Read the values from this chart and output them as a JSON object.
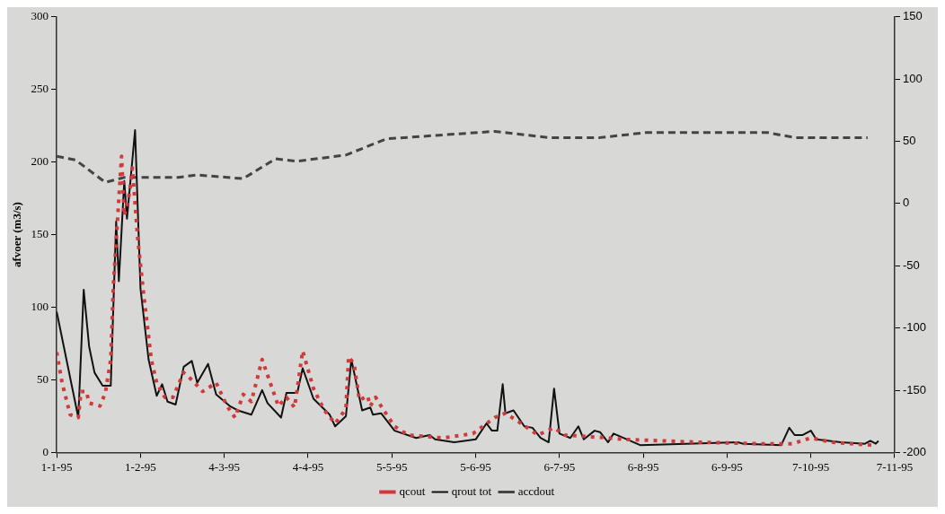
{
  "chart_data": {
    "type": "line",
    "ylabel": "afvoer (m3/s)",
    "xlim": [
      "1995-01-01",
      "1995-11-07"
    ],
    "xticks": [
      {
        "value": "1995-01-01",
        "label": "1-1-95"
      },
      {
        "value": "1995-02-01",
        "label": "1-2-95"
      },
      {
        "value": "1995-03-04",
        "label": "4-3-95"
      },
      {
        "value": "1995-04-04",
        "label": "4-4-95"
      },
      {
        "value": "1995-05-05",
        "label": "5-5-95"
      },
      {
        "value": "1995-06-05",
        "label": "5-6-95"
      },
      {
        "value": "1995-07-06",
        "label": "6-7-95"
      },
      {
        "value": "1995-08-06",
        "label": "6-8-95"
      },
      {
        "value": "1995-09-06",
        "label": "6-9-95"
      },
      {
        "value": "1995-10-07",
        "label": "7-10-95"
      },
      {
        "value": "1995-11-07",
        "label": "7-11-95"
      }
    ],
    "ylim": [
      0,
      300
    ],
    "yticks": [
      0,
      50,
      100,
      150,
      200,
      250,
      300
    ],
    "y2lim": [
      -200,
      150
    ],
    "y2ticks": [
      -200,
      -150,
      -100,
      -50,
      0,
      50,
      100,
      150
    ],
    "grid": false,
    "legend": "bottom",
    "marker": "none",
    "series": [
      {
        "name": "qcout",
        "color": "#d03a3a",
        "line_style": "dotted",
        "x": [
          "1995-01-01",
          "1995-01-03",
          "1995-01-06",
          "1995-01-09",
          "1995-01-10",
          "1995-01-12",
          "1995-01-13",
          "1995-01-17",
          "1995-01-19",
          "1995-01-21",
          "1995-01-22",
          "1995-01-25",
          "1995-01-26",
          "1995-01-28",
          "1995-01-29",
          "1995-01-31",
          "1995-02-02",
          "1995-02-05",
          "1995-02-07",
          "1995-02-10",
          "1995-02-13",
          "1995-02-17",
          "1995-02-20",
          "1995-02-24",
          "1995-03-01",
          "1995-03-05",
          "1995-03-08",
          "1995-03-11",
          "1995-03-14",
          "1995-03-18",
          "1995-03-21",
          "1995-03-24",
          "1995-03-27",
          "1995-03-30",
          "1995-04-02",
          "1995-04-06",
          "1995-04-10",
          "1995-04-14",
          "1995-04-18",
          "1995-04-19",
          "1995-04-21",
          "1995-04-23",
          "1995-04-26",
          "1995-04-27",
          "1995-04-29",
          "1995-05-02",
          "1995-05-06",
          "1995-05-11",
          "1995-05-24",
          "1995-06-04",
          "1995-06-12",
          "1995-06-16",
          "1995-06-21",
          "1995-06-28",
          "1995-07-04",
          "1995-07-08",
          "1995-07-24",
          "1995-07-30",
          "1995-08-27",
          "1995-09-18",
          "1995-09-30",
          "1995-10-07",
          "1995-10-15",
          "1995-10-30"
        ],
        "values": [
          69,
          48,
          26,
          24,
          42,
          42,
          34,
          32,
          41,
          64,
          116,
          204,
          163,
          179,
          196,
          147,
          112,
          64,
          48,
          38,
          38,
          55,
          50,
          42,
          48,
          32,
          24,
          40,
          35,
          64,
          48,
          32,
          38,
          31,
          70,
          44,
          29,
          20,
          30,
          66,
          61,
          36,
          39,
          32,
          38,
          29,
          18,
          12,
          10,
          13,
          24,
          27,
          21,
          12,
          17,
          12,
          10,
          9,
          7,
          6,
          6,
          10,
          7,
          5
        ]
      },
      {
        "name": "qrout tot",
        "color": "#111111",
        "line_style": "solid",
        "x": [
          "1995-01-01",
          "1995-01-09",
          "1995-01-11",
          "1995-01-13",
          "1995-01-15",
          "1995-01-18",
          "1995-01-21",
          "1995-01-23",
          "1995-01-24",
          "1995-01-26",
          "1995-01-27",
          "1995-01-30",
          "1995-02-01",
          "1995-02-04",
          "1995-02-07",
          "1995-02-09",
          "1995-02-11",
          "1995-02-14",
          "1995-02-17",
          "1995-02-20",
          "1995-02-22",
          "1995-02-26",
          "1995-03-01",
          "1995-03-06",
          "1995-03-09",
          "1995-03-14",
          "1995-03-18",
          "1995-03-20",
          "1995-03-25",
          "1995-03-27",
          "1995-03-31",
          "1995-04-02",
          "1995-04-06",
          "1995-04-12",
          "1995-04-14",
          "1995-04-18",
          "1995-04-20",
          "1995-04-24",
          "1995-04-27",
          "1995-04-28",
          "1995-05-01",
          "1995-05-06",
          "1995-05-14",
          "1995-05-19",
          "1995-05-21",
          "1995-05-28",
          "1995-06-05",
          "1995-06-09",
          "1995-06-11",
          "1995-06-13",
          "1995-06-15",
          "1995-06-16",
          "1995-06-19",
          "1995-06-23",
          "1995-06-26",
          "1995-06-29",
          "1995-07-02",
          "1995-07-04",
          "1995-07-06",
          "1995-07-10",
          "1995-07-13",
          "1995-07-15",
          "1995-07-19",
          "1995-07-21",
          "1995-07-24",
          "1995-07-26",
          "1995-08-05",
          "1995-08-22",
          "1995-09-10",
          "1995-09-12",
          "1995-09-26",
          "1995-09-29",
          "1995-10-01",
          "1995-10-04",
          "1995-10-07",
          "1995-10-09",
          "1995-10-18",
          "1995-10-27",
          "1995-10-29",
          "1995-10-31",
          "1995-11-01"
        ],
        "values": [
          97,
          24,
          112,
          73,
          55,
          46,
          46,
          159,
          118,
          187,
          161,
          222,
          113,
          64,
          39,
          47,
          35,
          33,
          59,
          63,
          48,
          61,
          40,
          32,
          29,
          26,
          43,
          34,
          24,
          41,
          41,
          58,
          37,
          26,
          18,
          25,
          64,
          29,
          31,
          26,
          27,
          15,
          10,
          12,
          9,
          7,
          9,
          20,
          15,
          15,
          47,
          27,
          29,
          18,
          17,
          10,
          7,
          44,
          13,
          10,
          18,
          9,
          15,
          14,
          7,
          13,
          5,
          6,
          7,
          6,
          5,
          17,
          12,
          12,
          15,
          9,
          7,
          6,
          8,
          6,
          8
        ]
      },
      {
        "name": "accdout",
        "color": "#444444",
        "line_style": "dashed",
        "axis": "y2",
        "x": [
          "1995-01-01",
          "1995-01-08",
          "1995-01-19",
          "1995-01-26",
          "1995-02-15",
          "1995-02-22",
          "1995-03-11",
          "1995-03-23",
          "1995-03-31",
          "1995-04-18",
          "1995-05-03",
          "1995-06-12",
          "1995-07-02",
          "1995-07-21",
          "1995-08-07",
          "1995-09-21",
          "1995-10-01",
          "1995-10-28"
        ],
        "values": [
          38,
          35,
          17,
          21,
          21,
          23,
          20,
          36,
          34,
          39,
          52,
          58,
          53,
          53,
          57,
          57,
          53,
          53
        ]
      }
    ]
  }
}
